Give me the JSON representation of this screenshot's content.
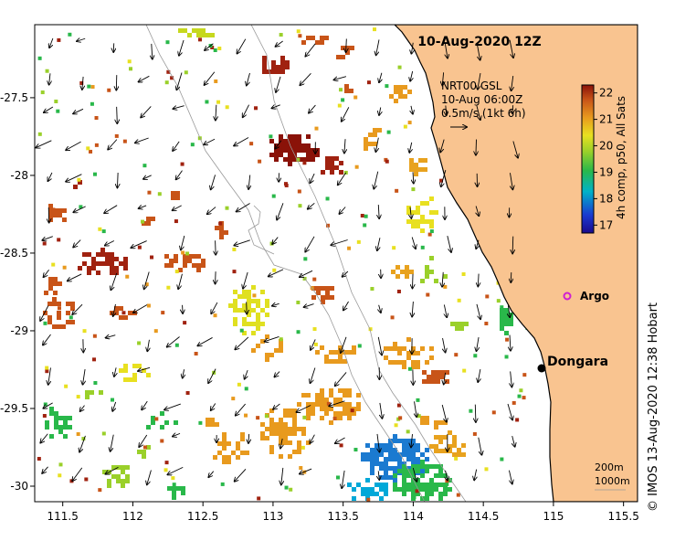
{
  "map": {
    "title": "10-Aug-2020 12Z",
    "x_ticks": [
      "111.5",
      "112",
      "112.5",
      "113",
      "113.5",
      "114",
      "114.5",
      "115",
      "115.5"
    ],
    "y_ticks": [
      "-27.5",
      "-28",
      "-28.5",
      "-29",
      "-29.5",
      "-30"
    ],
    "lon_range": [
      111.3,
      115.6
    ],
    "lat_range": [
      -30.1,
      -27.03
    ],
    "land_color": "#f9c490",
    "sea_color": "#ffffff"
  },
  "current_legend": {
    "line1": "NRT00 GSL",
    "line2": "10-Aug 06:00Z",
    "line3": "0.5m/s (1kt 6h)"
  },
  "colorbar": {
    "ticks": [
      "22",
      "21",
      "20",
      "19",
      "18",
      "17"
    ],
    "label": "4h comp, p50, All Sats",
    "range": [
      16.7,
      22.3
    ]
  },
  "places": {
    "argo": "Argo",
    "dongara": "Dongara"
  },
  "isobaths": {
    "line1": "200m",
    "line2": "1000m"
  },
  "credit": "© IMOS 13-Aug-2020 12:38 Hobart"
}
